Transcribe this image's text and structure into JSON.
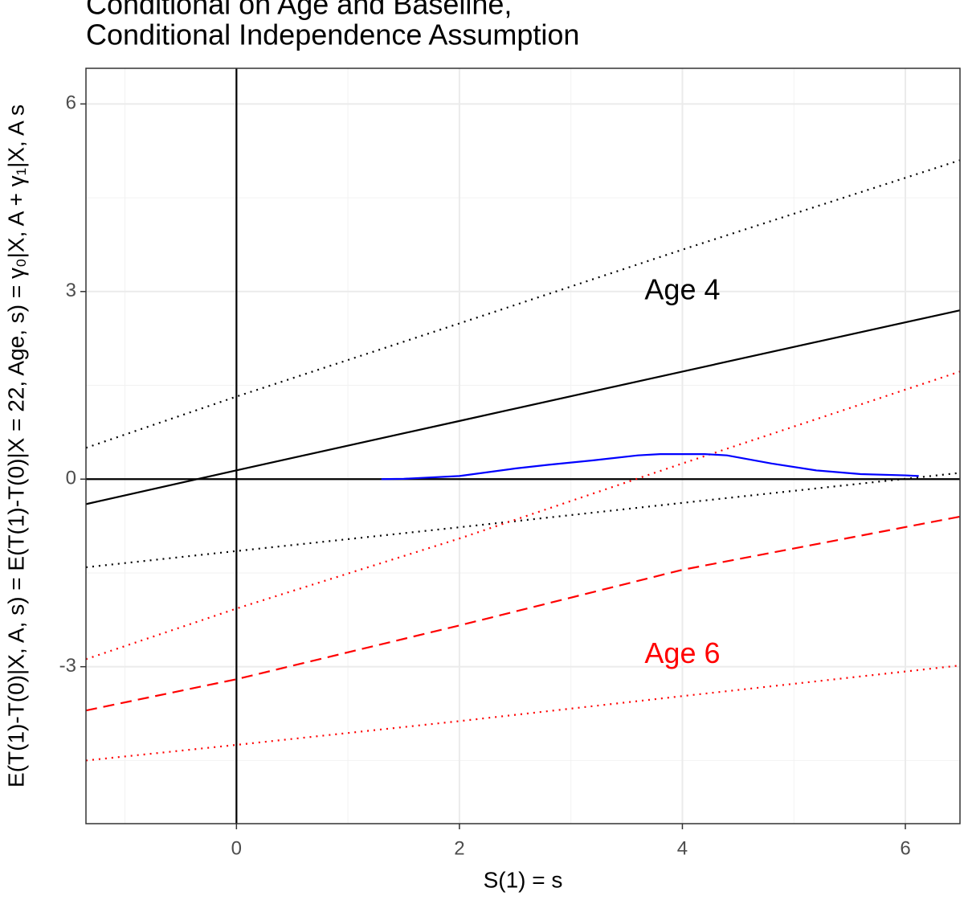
{
  "chart_data": {
    "type": "line",
    "title": [
      "Conditional on Age and Baseline,",
      "Conditional Independence Assumption"
    ],
    "x_label": "S(1) = s",
    "y_label": "E(T(1)-T(0)|X, A, s) = E(T(1)-T(0)|X = 22, Age, s) = γ₀|X, A + γ₁|X, A s",
    "xlim": [
      -1.35,
      6.49
    ],
    "ylim": [
      -5.51,
      6.57
    ],
    "xticks": [
      0,
      2,
      4,
      6
    ],
    "yticks": [
      -3,
      0,
      3,
      6
    ],
    "x_minor_grid": [
      -1,
      1,
      3,
      5
    ],
    "y_minor_grid": [
      -4.5,
      -1.5,
      1.5,
      4.5
    ],
    "grid": true,
    "hline": 0,
    "vline": 0,
    "series": [
      {
        "color": "#000000",
        "style": "solid",
        "x": [
          -1.35,
          0,
          2,
          4,
          6.49
        ],
        "values": [
          -0.4,
          0.14,
          0.93,
          1.72,
          2.7
        ]
      },
      {
        "color": "#000000",
        "style": "dotted",
        "x": [
          -1.35,
          0,
          2,
          4,
          6.49
        ],
        "values": [
          0.5,
          1.32,
          2.49,
          3.67,
          5.1
        ]
      },
      {
        "color": "#000000",
        "style": "dotted",
        "x": [
          -1.35,
          0,
          2,
          4,
          6.49
        ],
        "values": [
          -1.41,
          -1.15,
          -0.77,
          -0.38,
          0.1
        ]
      },
      {
        "color": "#ff0000",
        "style": "dashed",
        "x": [
          -1.35,
          0,
          2,
          4,
          6.49
        ],
        "values": [
          -3.7,
          -3.2,
          -2.34,
          -1.45,
          -0.6
        ]
      },
      {
        "color": "#ff0000",
        "style": "dotted",
        "x": [
          -1.35,
          0,
          2,
          4,
          6.49
        ],
        "values": [
          -2.88,
          -2.07,
          -0.95,
          0.25,
          1.72
        ]
      },
      {
        "color": "#ff0000",
        "style": "dotted",
        "x": [
          -1.35,
          0,
          2,
          4,
          6.49
        ],
        "values": [
          -4.5,
          -4.25,
          -3.87,
          -3.47,
          -2.98
        ]
      },
      {
        "color": "#0000ff",
        "style": "solid",
        "x": [
          1.3,
          1.5,
          2,
          2.5,
          2.8,
          3.2,
          3.6,
          3.8,
          4.2,
          4.4,
          4.8,
          5.2,
          5.6,
          6.0,
          6.12
        ],
        "values": [
          0,
          0.005,
          0.05,
          0.17,
          0.23,
          0.3,
          0.38,
          0.4,
          0.4,
          0.38,
          0.25,
          0.14,
          0.08,
          0.06,
          0.05
        ]
      }
    ],
    "annotations": [
      {
        "text": "Age 4",
        "x": 4,
        "y": 3.0,
        "color": "#000000"
      },
      {
        "text": "Age 6",
        "x": 4,
        "y": -2.82,
        "color": "#ff0000"
      }
    ]
  }
}
